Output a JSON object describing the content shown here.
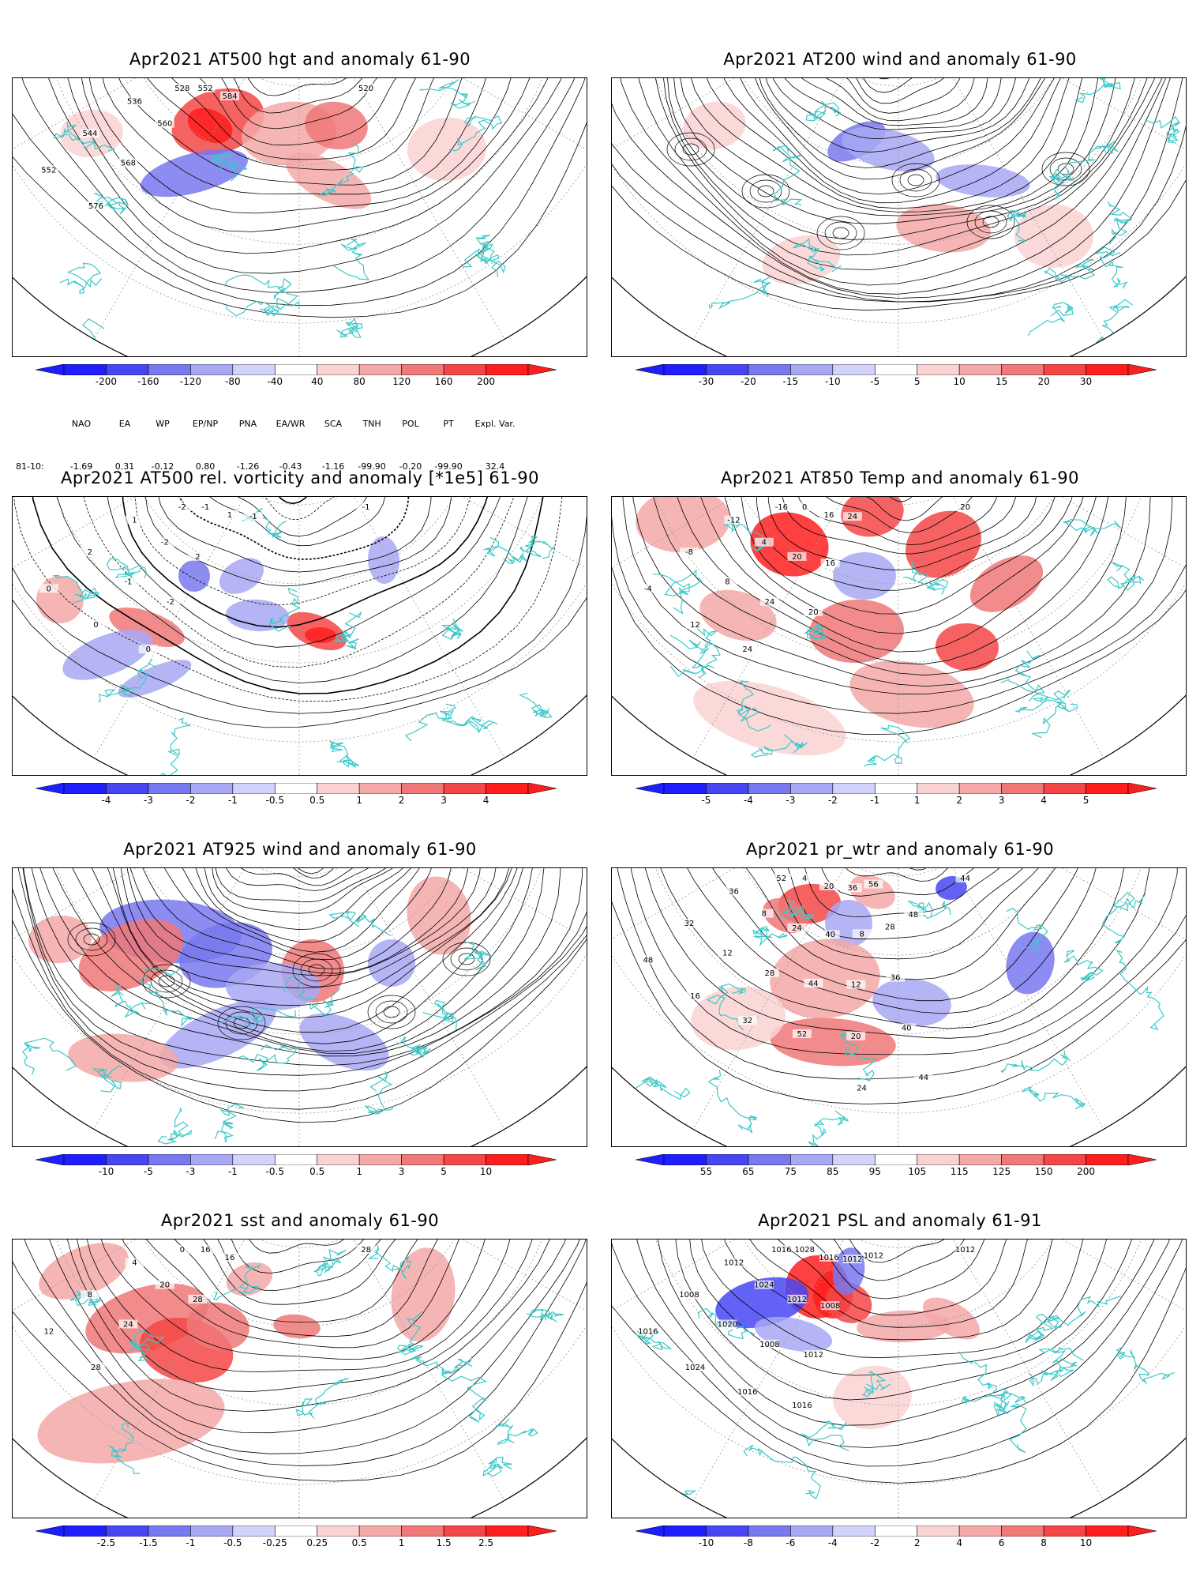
{
  "panels": [
    {
      "id": "p1",
      "title": "Apr2021 AT500 hgt and anomaly 61-90",
      "contour_labels": [
        "520",
        "528",
        "536",
        "544",
        "552",
        "552",
        "560",
        "568",
        "576",
        "584"
      ],
      "colorbar": {
        "ticks": [
          "-200",
          "-160",
          "-120",
          "-80",
          "-40",
          "40",
          "80",
          "120",
          "160",
          "200"
        ]
      },
      "indices": {
        "header": [
          "NAO",
          "EA",
          "WP",
          "EP/NP",
          "PNA",
          "EA/WR",
          "SCA",
          "TNH",
          "POL",
          "PT",
          "Expl. Var."
        ],
        "row_label": "81-10:",
        "values": [
          "-1.69",
          "0.31",
          "-0.12",
          "0.80",
          "-1.26",
          "-0.43",
          "-1.16",
          "-99.90",
          "-0.20",
          "-99.90",
          "32.4"
        ]
      }
    },
    {
      "id": "p2",
      "title": "Apr2021 AT200 wind and anomaly 61-90",
      "contour_labels": [],
      "colorbar": {
        "ticks": [
          "-30",
          "-20",
          "-15",
          "-10",
          "-5",
          "5",
          "10",
          "15",
          "20",
          "30"
        ]
      }
    },
    {
      "id": "p3",
      "title": "Apr2021 AT500 rel. vorticity and anomaly [*1e5] 61-90",
      "contour_labels": [
        "-1",
        "-2",
        "1",
        "2",
        "0",
        "-1",
        "-2",
        "-1",
        "0",
        "1",
        "2",
        "-2",
        "0",
        "-1"
      ],
      "colorbar": {
        "ticks": [
          "-4",
          "-3",
          "-2",
          "-1",
          "-0.5",
          "0.5",
          "1",
          "2",
          "3",
          "4"
        ]
      }
    },
    {
      "id": "p4",
      "title": "Apr2021 AT850 Temp and anomaly 61-90",
      "contour_labels": [
        "20",
        "-16",
        "-12",
        "-8",
        "-4",
        "0",
        "4",
        "8",
        "12",
        "16",
        "20",
        "24",
        "24",
        "24",
        "16",
        "20"
      ],
      "colorbar": {
        "ticks": [
          "-5",
          "-4",
          "-3",
          "-2",
          "-1",
          "1",
          "2",
          "3",
          "4",
          "5"
        ]
      }
    },
    {
      "id": "p5",
      "title": "Apr2021 AT925 wind and anomaly 61-90",
      "contour_labels": [],
      "colorbar": {
        "ticks": [
          "-10",
          "-5",
          "-3",
          "-1",
          "-0.5",
          "0.5",
          "1",
          "3",
          "5",
          "10"
        ]
      }
    },
    {
      "id": "p6",
      "title": "Apr2021 pr_wtr and anomaly 61-90",
      "contour_labels": [
        "44",
        "52",
        "36",
        "32",
        "48",
        "4",
        "8",
        "12",
        "16",
        "20",
        "24",
        "28",
        "32",
        "36",
        "40",
        "44",
        "52",
        "56",
        "8",
        "12",
        "20",
        "24",
        "28",
        "36",
        "40",
        "44",
        "48"
      ],
      "colorbar": {
        "ticks": [
          "55",
          "65",
          "75",
          "85",
          "95",
          "105",
          "115",
          "125",
          "150",
          "200"
        ]
      }
    },
    {
      "id": "p7",
      "title": "Apr2021 sst and anomaly 61-90",
      "contour_labels": [
        "28",
        "0",
        "4",
        "8",
        "12",
        "16",
        "20",
        "24",
        "28",
        "16",
        "28"
      ],
      "colorbar": {
        "ticks": [
          "-2.5",
          "-1.5",
          "-1",
          "-0.5",
          "-0.25",
          "0.25",
          "0.5",
          "1",
          "1.5",
          "2.5"
        ]
      }
    },
    {
      "id": "p8",
      "title": "Apr2021 PSL and anomaly 61-91",
      "contour_labels": [
        "1012",
        "1016",
        "1012",
        "1008",
        "1016",
        "1028",
        "1024",
        "1020",
        "1024",
        "1016",
        "1012",
        "1008",
        "1016",
        "1012",
        "1008",
        "1012",
        "1016",
        "1012"
      ],
      "colorbar": {
        "ticks": [
          "-10",
          "-8",
          "-6",
          "-4",
          "-2",
          "2",
          "4",
          "6",
          "8",
          "10"
        ]
      }
    }
  ],
  "colors": {
    "blue_scale": [
      "#1e1eff",
      "#4646f5",
      "#7878f0",
      "#a8a8f5",
      "#d2d2fa"
    ],
    "red_scale": [
      "#fad2d2",
      "#f5a8a8",
      "#f07878",
      "#f54646",
      "#ff1e1e"
    ],
    "coastline": "#3cc8c8",
    "grid": "#9a9a9a"
  }
}
